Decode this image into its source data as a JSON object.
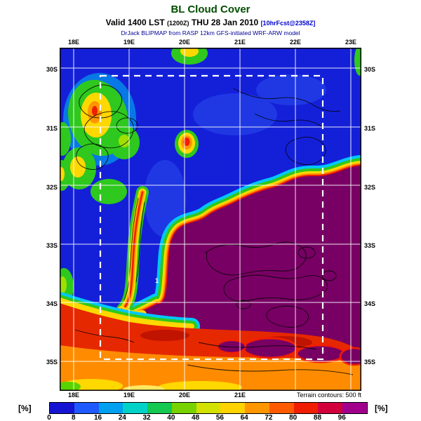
{
  "header": {
    "title": "BL Cloud Cover",
    "valid": {
      "prefix": "Valid 1400 LST ",
      "zulu": "(1200Z)",
      "middle": " THU 28 Jan 2010 ",
      "fcst": "[10hrFcst@2358Z]"
    },
    "model": "DrJack BLIPMAP from RASP 12km GFS-initiated WRF-ARW model"
  },
  "map": {
    "lon_labels_top": [
      "18E",
      "19E",
      "20E",
      "21E",
      "22E",
      "23E"
    ],
    "lon_labels_bottom": [
      "18E",
      "19E",
      "20E",
      "21E"
    ],
    "lat_labels_left": [
      "30S",
      "31S",
      "32S",
      "33S",
      "34S",
      "35S"
    ],
    "lat_labels_right": [
      "30S",
      "31S",
      "32S",
      "33S",
      "34S",
      "35S"
    ],
    "terrain_note": "Terrain contours: 500 ft",
    "marker_label": "1"
  },
  "colorbar": {
    "unit_left": "[%]",
    "unit_right": "[%]",
    "ticks": [
      "0",
      "8",
      "16",
      "24",
      "32",
      "40",
      "48",
      "56",
      "64",
      "72",
      "80",
      "88",
      "96"
    ],
    "colors": [
      "#1414d2",
      "#1e5aff",
      "#00a0f0",
      "#00d2c8",
      "#14c850",
      "#78d200",
      "#d2e100",
      "#ffd200",
      "#ff9600",
      "#ff5a00",
      "#f01e00",
      "#d2003c",
      "#a0008c"
    ]
  },
  "chart_data": {
    "type": "heatmap",
    "title": "BL Cloud Cover",
    "valid": "Valid 1400 LST (1200Z) THU 28 Jan 2010",
    "forecast": "10hrFcst@2358Z",
    "model": "DrJack BLIPMAP from RASP 12km GFS-initiated WRF-ARW model",
    "units": "%",
    "colorbar_ticks": [
      0,
      8,
      16,
      24,
      32,
      40,
      48,
      56,
      64,
      72,
      80,
      88,
      96
    ],
    "x_axis_labels": [
      "18E",
      "19E",
      "20E",
      "21E",
      "22E",
      "23E"
    ],
    "y_axis_labels": [
      "30S",
      "31S",
      "32S",
      "33S",
      "34S",
      "35S"
    ],
    "terrain_contour_interval_ft": 500,
    "grid": true,
    "legend_position": "bottom",
    "coarse_grid": {
      "lon_bins": [
        "18-19E",
        "19-20E",
        "20-21E",
        "21-22E",
        "22-23E"
      ],
      "lat_bins": [
        "30-31S",
        "31-32S",
        "32-33S",
        "33-34S",
        "34-35S"
      ],
      "cloud_cover_pct": [
        [
          40,
          8,
          4,
          4,
          8
        ],
        [
          30,
          16,
          8,
          24,
          64
        ],
        [
          8,
          32,
          64,
          96,
          96
        ],
        [
          8,
          48,
          96,
          96,
          96
        ],
        [
          64,
          80,
          80,
          88,
          80
        ]
      ]
    }
  }
}
